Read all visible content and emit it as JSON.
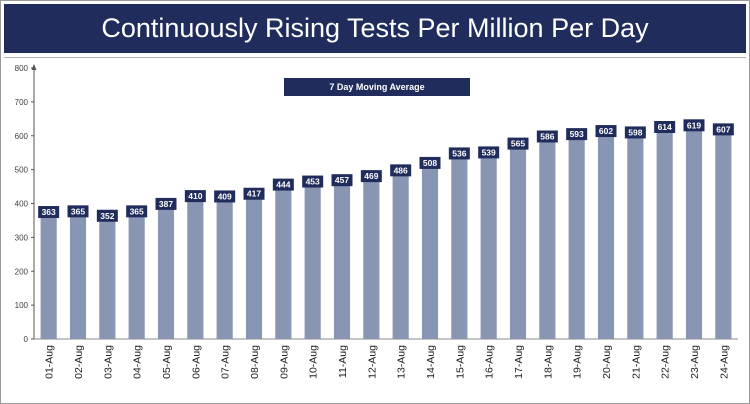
{
  "header": {
    "title": "Continuously Rising Tests Per Million Per Day"
  },
  "chart_data": {
    "type": "bar",
    "title": "Continuously Rising Tests Per Million Per Day",
    "legend": "7 Day Moving Average",
    "categories": [
      "01-Aug",
      "02-Aug",
      "03-Aug",
      "04-Aug",
      "05-Aug",
      "06-Aug",
      "07-Aug",
      "08-Aug",
      "09-Aug",
      "10-Aug",
      "11-Aug",
      "12-Aug",
      "13-Aug",
      "14-Aug",
      "15-Aug",
      "16-Aug",
      "17-Aug",
      "18-Aug",
      "19-Aug",
      "20-Aug",
      "21-Aug",
      "22-Aug",
      "23-Aug",
      "24-Aug"
    ],
    "values": [
      363,
      365,
      352,
      365,
      387,
      410,
      409,
      417,
      444,
      453,
      457,
      469,
      486,
      508,
      536,
      539,
      565,
      586,
      593,
      602,
      598,
      614,
      619,
      607
    ],
    "ylim": [
      0,
      800
    ],
    "yticks": [
      0,
      100,
      200,
      300,
      400,
      500,
      600,
      700,
      800
    ],
    "grid": false,
    "colors": {
      "bar": "#8896b3",
      "label_box": "#1f2c5c",
      "title_bg": "#1f2c5c"
    }
  }
}
